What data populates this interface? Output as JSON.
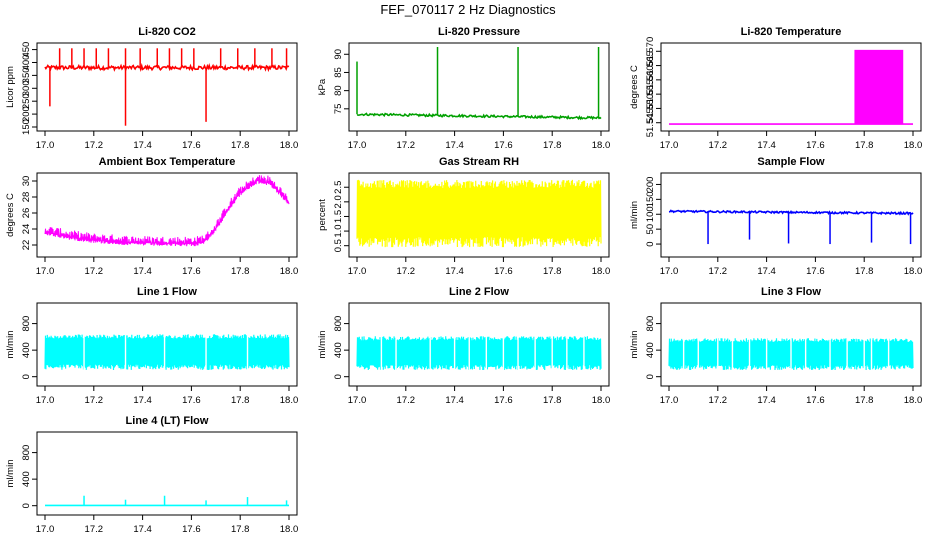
{
  "title": "FEF_070117  2 Hz Diagnostics",
  "chart_data": [
    {
      "type": "line",
      "title": "Li-820 CO2",
      "xlabel": "",
      "ylabel": "Licor ppm",
      "color": "#ff0000",
      "xlim": [
        17.0,
        18.0
      ],
      "ylim": [
        150,
        460
      ],
      "xticks": [
        "17.0",
        "17.2",
        "17.4",
        "17.6",
        "17.8",
        "18.0"
      ],
      "yticks": [
        "150",
        "200",
        "250",
        "300",
        "350",
        "400",
        "450"
      ],
      "baseline": 380,
      "noise": 8,
      "spikes": [
        [
          17.06,
          455
        ],
        [
          17.11,
          455
        ],
        [
          17.16,
          455
        ],
        [
          17.21,
          455
        ],
        [
          17.26,
          455
        ],
        [
          17.33,
          155
        ],
        [
          17.33,
          455
        ],
        [
          17.39,
          455
        ],
        [
          17.46,
          455
        ],
        [
          17.51,
          455
        ],
        [
          17.56,
          455
        ],
        [
          17.61,
          455
        ],
        [
          17.66,
          170
        ],
        [
          17.72,
          455
        ],
        [
          17.79,
          455
        ],
        [
          17.86,
          455
        ],
        [
          17.93,
          455
        ],
        [
          17.99,
          455
        ],
        [
          17.02,
          230
        ]
      ]
    },
    {
      "type": "line",
      "title": "Li-820 Pressure",
      "xlabel": "",
      "ylabel": "kPa",
      "color": "#00a000",
      "xlim": [
        17.0,
        18.0
      ],
      "ylim": [
        70,
        92
      ],
      "xticks": [
        "17.0",
        "17.2",
        "17.4",
        "17.6",
        "17.8",
        "18.0"
      ],
      "yticks": [
        "75",
        "80",
        "85",
        "90"
      ],
      "baseline": [
        [
          17.0,
          73.5
        ],
        [
          18.0,
          72.5
        ]
      ],
      "noise": 0.3,
      "spikes": [
        [
          17.0,
          88
        ],
        [
          17.33,
          92
        ],
        [
          17.66,
          92
        ],
        [
          17.99,
          92
        ]
      ]
    },
    {
      "type": "line",
      "title": "Li-820 Temperature",
      "xlabel": "",
      "ylabel": "degrees C",
      "color": "#ff00ff",
      "xlim": [
        17.0,
        18.0
      ],
      "ylim": [
        51.5435,
        51.5715
      ],
      "xticks": [
        "17.0",
        "17.2",
        "17.4",
        "17.6",
        "17.8",
        "18.0"
      ],
      "yticks": [
        "51.545",
        "51.550",
        "51.555",
        "51.560",
        "51.565",
        "51.570"
      ],
      "baseline": 51.5445,
      "band": [
        17.76,
        17.96,
        51.5445,
        51.5705
      ]
    },
    {
      "type": "line",
      "title": "Ambient Box Temperature",
      "xlabel": "",
      "ylabel": "degrees C",
      "color": "#ff00ff",
      "xlim": [
        17.0,
        18.0
      ],
      "ylim": [
        21.0,
        30.5
      ],
      "xticks": [
        "17.0",
        "17.2",
        "17.4",
        "17.6",
        "17.8",
        "18.0"
      ],
      "yticks": [
        "22",
        "24",
        "26",
        "28",
        "30"
      ],
      "curve": [
        [
          17.0,
          23.6
        ],
        [
          17.1,
          23.0
        ],
        [
          17.2,
          22.6
        ],
        [
          17.35,
          22.3
        ],
        [
          17.5,
          22.2
        ],
        [
          17.62,
          22.2
        ],
        [
          17.66,
          22.6
        ],
        [
          17.7,
          24.0
        ],
        [
          17.75,
          26.5
        ],
        [
          17.8,
          28.5
        ],
        [
          17.87,
          30.0
        ],
        [
          17.92,
          29.8
        ],
        [
          17.96,
          28.6
        ],
        [
          18.0,
          27.2
        ]
      ],
      "noise": 0.9
    },
    {
      "type": "line",
      "title": "Gas Stream RH",
      "xlabel": "",
      "ylabel": "percent",
      "color": "#ffff00",
      "xlim": [
        17.0,
        18.0
      ],
      "ylim": [
        0.25,
        2.85
      ],
      "xticks": [
        "17.0",
        "17.2",
        "17.4",
        "17.6",
        "17.8",
        "18.0"
      ],
      "yticks": [
        "0.5",
        "1.0",
        "1.5",
        "2.0",
        "2.5"
      ],
      "range": [
        0.45,
        2.75
      ]
    },
    {
      "type": "line",
      "title": "Sample Flow",
      "xlabel": "",
      "ylabel": "ml/min",
      "color": "#0000ff",
      "xlim": [
        17.0,
        18.0
      ],
      "ylim": [
        -30,
        225
      ],
      "xticks": [
        "17.0",
        "17.2",
        "17.4",
        "17.6",
        "17.8",
        "18.0"
      ],
      "yticks": [
        "0",
        "50",
        "100",
        "150",
        "200"
      ],
      "baseline": [
        [
          17.0,
          110
        ],
        [
          18.0,
          103
        ]
      ],
      "noise": 3,
      "dips": [
        [
          17.16,
          0
        ],
        [
          17.33,
          15
        ],
        [
          17.49,
          2
        ],
        [
          17.66,
          0
        ],
        [
          17.83,
          5
        ],
        [
          17.99,
          0
        ]
      ]
    },
    {
      "type": "area",
      "title": "Line 1 Flow",
      "xlabel": "",
      "ylabel": "ml/min",
      "color": "#00ffff",
      "xlim": [
        17.0,
        18.0
      ],
      "ylim": [
        -80,
        1050
      ],
      "xticks": [
        "17.0",
        "17.2",
        "17.4",
        "17.6",
        "17.8",
        "18.0"
      ],
      "yticks": [
        "0",
        "400",
        "800"
      ],
      "range": [
        100,
        640
      ],
      "gaps": [
        17.16,
        17.33,
        17.49,
        17.66,
        17.83
      ]
    },
    {
      "type": "area",
      "title": "Line 2 Flow",
      "xlabel": "",
      "ylabel": "ml/min",
      "color": "#00ffff",
      "xlim": [
        17.0,
        18.0
      ],
      "ylim": [
        -80,
        1050
      ],
      "xticks": [
        "17.0",
        "17.2",
        "17.4",
        "17.6",
        "17.8",
        "18.0"
      ],
      "yticks": [
        "0",
        "400",
        "800"
      ],
      "range": [
        100,
        610
      ],
      "gaps": [
        17.1,
        17.16,
        17.3,
        17.4,
        17.46,
        17.53,
        17.6,
        17.66,
        17.73,
        17.8,
        17.86,
        17.93
      ]
    },
    {
      "type": "area",
      "title": "Line 3 Flow",
      "xlabel": "",
      "ylabel": "ml/min",
      "color": "#00ffff",
      "xlim": [
        17.0,
        18.0
      ],
      "ylim": [
        -80,
        1050
      ],
      "xticks": [
        "17.0",
        "17.2",
        "17.4",
        "17.6",
        "17.8",
        "18.0"
      ],
      "yticks": [
        "0",
        "400",
        "800"
      ],
      "range": [
        100,
        580
      ],
      "gaps": [
        17.06,
        17.12,
        17.2,
        17.26,
        17.33,
        17.4,
        17.5,
        17.56,
        17.66,
        17.73,
        17.8,
        17.83,
        17.9
      ]
    },
    {
      "type": "line",
      "title": "Line 4 (LT) Flow",
      "xlabel": "",
      "ylabel": "ml/min",
      "color": "#00ffff",
      "xlim": [
        17.0,
        18.0
      ],
      "ylim": [
        -80,
        1050
      ],
      "xticks": [
        "17.0",
        "17.2",
        "17.4",
        "17.6",
        "17.8",
        "18.0"
      ],
      "yticks": [
        "0",
        "400",
        "800"
      ],
      "baseline": 5,
      "noise": 0,
      "spikes": [
        [
          17.16,
          150
        ],
        [
          17.33,
          90
        ],
        [
          17.49,
          150
        ],
        [
          17.66,
          80
        ],
        [
          17.83,
          130
        ],
        [
          17.99,
          80
        ]
      ]
    }
  ]
}
